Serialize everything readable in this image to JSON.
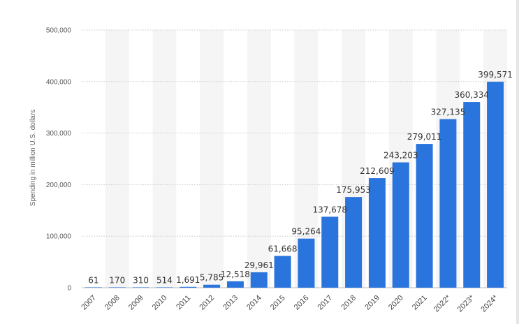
{
  "chart_data": {
    "type": "bar",
    "ylabel": "Spending in million U.S. dollars",
    "xlabel": "",
    "ylim": [
      0,
      500000
    ],
    "yticks": [
      0,
      100000,
      200000,
      300000,
      400000,
      500000
    ],
    "ytick_labels": [
      "0",
      "100,000",
      "200,000",
      "300,000",
      "400,000",
      "500,000"
    ],
    "categories": [
      "2007",
      "2008",
      "2009",
      "2010",
      "2011",
      "2012",
      "2013",
      "2014",
      "2015",
      "2016",
      "2017",
      "2018",
      "2019",
      "2020",
      "2021",
      "2022*",
      "2023*",
      "2024*"
    ],
    "values": [
      61,
      170,
      310,
      514,
      1691,
      5785,
      12518,
      29961,
      61668,
      95264,
      137678,
      175953,
      212609,
      243203,
      279011,
      327135,
      360334,
      399571
    ],
    "value_labels": [
      "61",
      "170",
      "310",
      "514",
      "1,691",
      "5,785",
      "12,518",
      "29,961",
      "61,668",
      "95,264",
      "137,678",
      "175,953",
      "212,609",
      "243,203",
      "279,011",
      "327,135",
      "360,334",
      "399,571"
    ],
    "bar_color": "#2a74dd",
    "band_color": "#f5f5f5",
    "grid": true,
    "grid_color": "#c8c8c8"
  }
}
